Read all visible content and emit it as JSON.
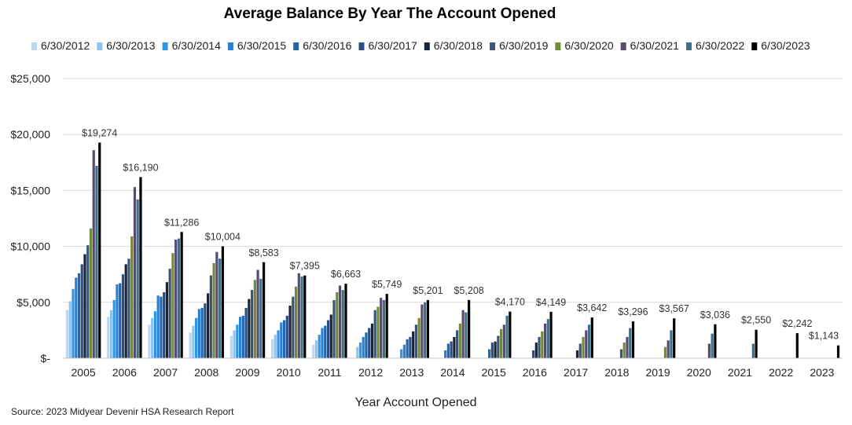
{
  "source": "Source: 2023 Midyear Devenir HSA Research Report",
  "chart_data": {
    "type": "bar",
    "title": "Average Balance By Year The Account Opened",
    "xlabel": "Year Account Opened",
    "ylabel": "",
    "ylim": [
      0,
      25000
    ],
    "yticks": [
      0,
      5000,
      10000,
      15000,
      20000,
      25000
    ],
    "ytick_labels": [
      "$-",
      "$5,000",
      "$10,000",
      "$15,000",
      "$20,000",
      "$25,000"
    ],
    "grid": true,
    "legend_position": "top",
    "categories": [
      "2005",
      "2006",
      "2007",
      "2008",
      "2009",
      "2010",
      "2011",
      "2012",
      "2013",
      "2014",
      "2015",
      "2016",
      "2017",
      "2018",
      "2019",
      "2020",
      "2021",
      "2022",
      "2023"
    ],
    "series": [
      {
        "name": "6/30/2012",
        "color": "#bdd7ee",
        "values": [
          4300,
          3700,
          3000,
          2300,
          2000,
          1700,
          1200,
          null,
          null,
          null,
          null,
          null,
          null,
          null,
          null,
          null,
          null,
          null,
          null
        ]
      },
      {
        "name": "6/30/2013",
        "color": "#8fc3f0",
        "values": [
          5100,
          4300,
          3600,
          2900,
          2500,
          2100,
          1600,
          1000,
          null,
          null,
          null,
          null,
          null,
          null,
          null,
          null,
          null,
          null,
          null
        ]
      },
      {
        "name": "6/30/2014",
        "color": "#2e95e8",
        "values": [
          6200,
          5200,
          4200,
          3600,
          3000,
          2500,
          2100,
          1400,
          800,
          null,
          null,
          null,
          null,
          null,
          null,
          null,
          null,
          null,
          null
        ]
      },
      {
        "name": "6/30/2015",
        "color": "#2a7fd0",
        "values": [
          7200,
          6600,
          5600,
          4400,
          3700,
          3200,
          2700,
          1900,
          1200,
          700,
          null,
          null,
          null,
          null,
          null,
          null,
          null,
          null,
          null
        ]
      },
      {
        "name": "6/30/2016",
        "color": "#2266b0",
        "values": [
          7600,
          6700,
          5500,
          4500,
          3800,
          3400,
          2900,
          2300,
          1700,
          1300,
          800,
          null,
          null,
          null,
          null,
          null,
          null,
          null,
          null
        ]
      },
      {
        "name": "6/30/2017",
        "color": "#2b4f82",
        "values": [
          8400,
          7500,
          5900,
          4900,
          4500,
          3800,
          3400,
          2700,
          1900,
          1500,
          1400,
          700,
          null,
          null,
          null,
          null,
          null,
          null,
          null
        ]
      },
      {
        "name": "6/30/2018",
        "color": "#1b2435",
        "values": [
          9300,
          8400,
          6800,
          5800,
          5300,
          4700,
          3900,
          3100,
          2400,
          1900,
          1500,
          1400,
          700,
          null,
          null,
          null,
          null,
          null,
          null
        ]
      },
      {
        "name": "6/30/2019",
        "color": "#3b5576",
        "values": [
          10100,
          8900,
          8000,
          7400,
          6100,
          5500,
          5200,
          4300,
          3000,
          2500,
          2000,
          1900,
          1300,
          800,
          null,
          null,
          null,
          null,
          null
        ]
      },
      {
        "name": "6/30/2020",
        "color": "#6f8b3a",
        "values": [
          11600,
          10900,
          9400,
          8500,
          7000,
          6400,
          5900,
          4600,
          3600,
          3100,
          2600,
          2400,
          1900,
          1400,
          1000,
          null,
          null,
          null,
          null
        ]
      },
      {
        "name": "6/30/2021",
        "color": "#5a4a6e",
        "values": [
          18600,
          15300,
          10600,
          9500,
          7900,
          7600,
          6500,
          5400,
          4800,
          4300,
          3000,
          3100,
          2500,
          1900,
          1600,
          1300,
          null,
          null,
          null
        ]
      },
      {
        "name": "6/30/2022",
        "color": "#3d6f86",
        "values": [
          17200,
          14200,
          10700,
          8900,
          7100,
          7300,
          6100,
          5200,
          5000,
          4100,
          3800,
          3500,
          3000,
          2700,
          2500,
          2200,
          1300,
          null,
          null
        ]
      },
      {
        "name": "6/30/2023",
        "color": "#000000",
        "values": [
          19274,
          16190,
          11286,
          10004,
          8583,
          7395,
          6663,
          5749,
          5201,
          5208,
          4170,
          4149,
          3642,
          3296,
          3567,
          3036,
          2550,
          2242,
          1143
        ]
      }
    ],
    "data_labels": [
      "$19,274",
      "$16,190",
      "$11,286",
      "$10,004",
      "$8,583",
      "$7,395",
      "$6,663",
      "$5,749",
      "$5,201",
      "$5,208",
      "$4,170",
      "$4,149",
      "$3,642",
      "$3,296",
      "$3,567",
      "$3,036",
      "$2,550",
      "$2,242",
      "$1,143"
    ]
  }
}
